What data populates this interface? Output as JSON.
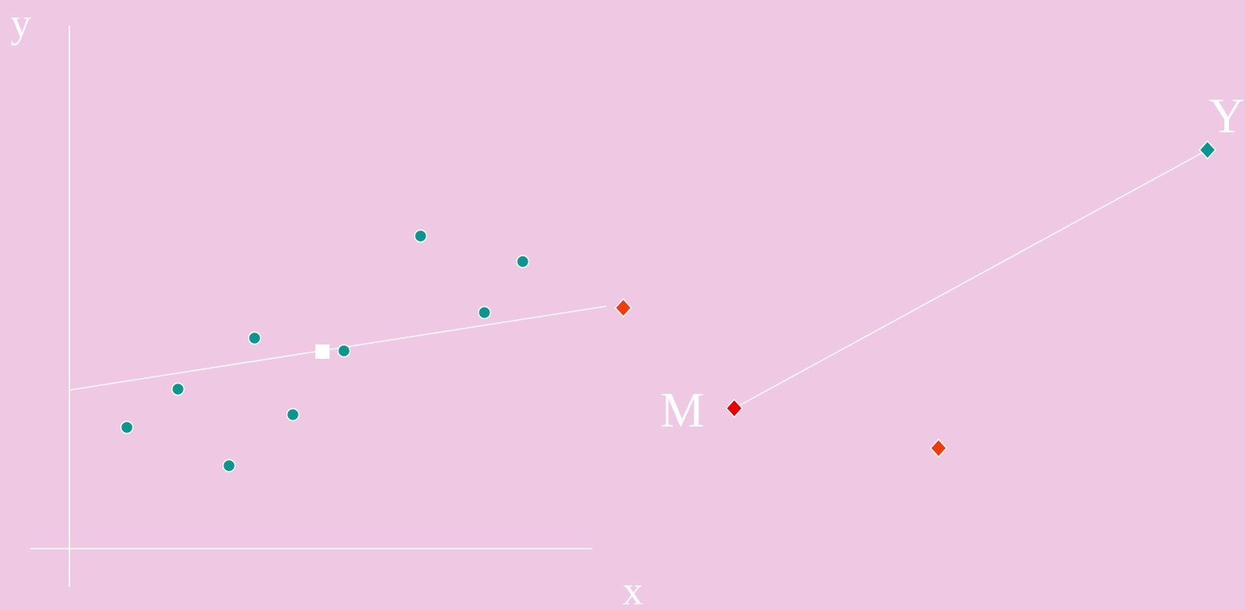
{
  "labels": {
    "y_axis": "y",
    "x_axis": "x",
    "point_m": "M",
    "point_y": "Y"
  }
}
